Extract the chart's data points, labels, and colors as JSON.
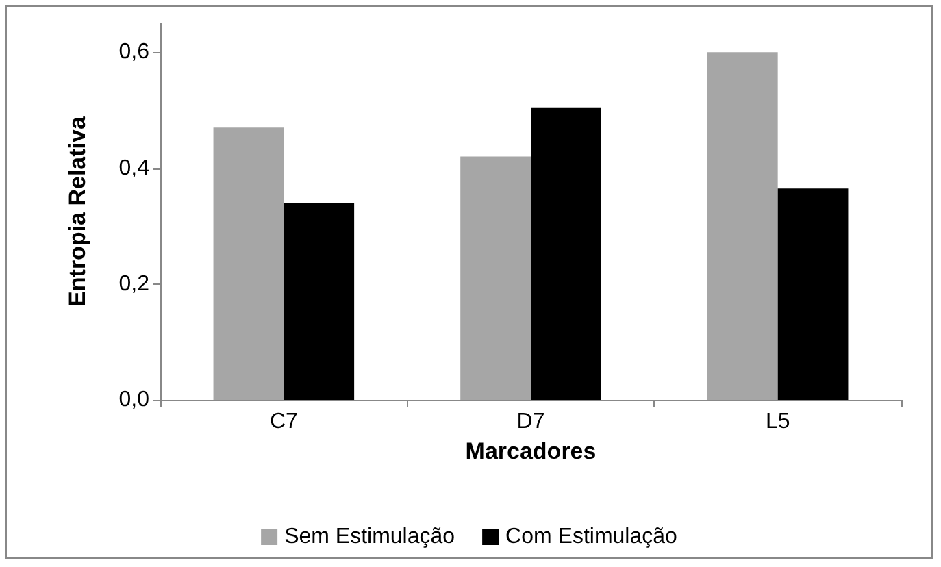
{
  "chart_data": {
    "type": "bar",
    "xlabel": "Marcadores",
    "ylabel": "Entropia Relativa",
    "categories": [
      "C7",
      "D7",
      "L5"
    ],
    "series": [
      {
        "name": "Sem Estimulação",
        "color": "#a6a6a6",
        "values": [
          0.47,
          0.42,
          0.6
        ]
      },
      {
        "name": "Com Estimulação",
        "color": "#000000",
        "values": [
          0.34,
          0.505,
          0.365
        ]
      }
    ],
    "ylim": [
      0,
      0.65
    ],
    "yticks": [
      {
        "value": 0,
        "label": "0,0"
      },
      {
        "value": 0.2,
        "label": "0,2"
      },
      {
        "value": 0.4,
        "label": "0,4"
      },
      {
        "value": 0.6,
        "label": "0,6"
      }
    ],
    "grid": false,
    "legend": "bottom"
  }
}
